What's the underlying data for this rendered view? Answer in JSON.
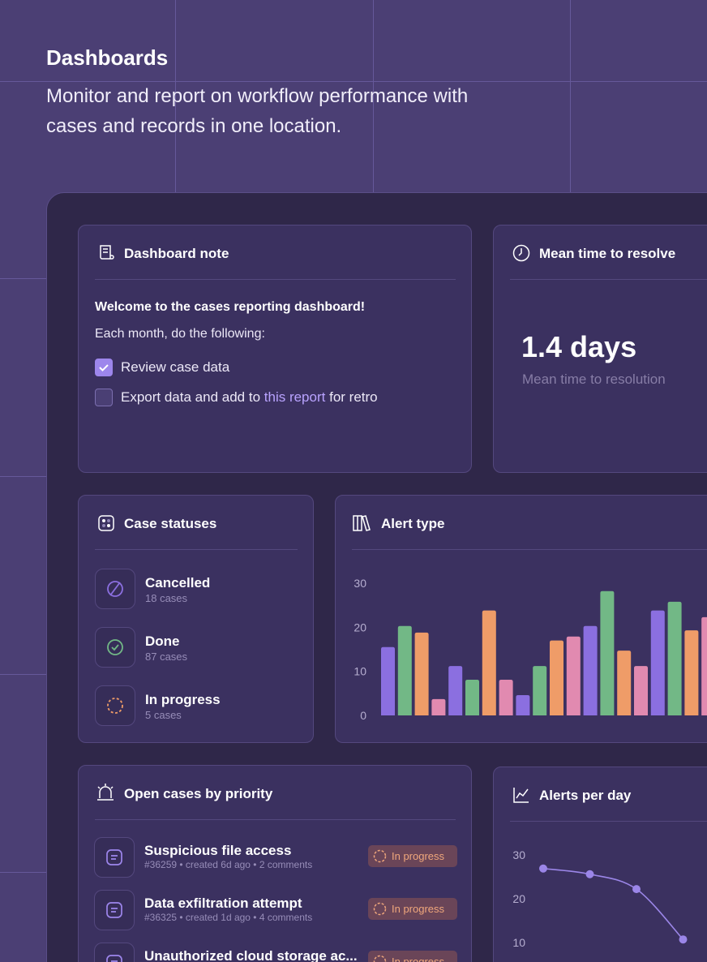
{
  "header": {
    "title": "Dashboards",
    "subtitle": "Monitor and report on workflow performance with cases and records in one location."
  },
  "note": {
    "title": "Dashboard note",
    "heading": "Welcome to the cases reporting dashboard!",
    "intro": "Each month, do the following:",
    "tasks": [
      {
        "text": "Review case data",
        "checked": true
      },
      {
        "text_before": "Export data and add to",
        "link": "this report",
        "text_after": "for retro",
        "checked": false
      }
    ]
  },
  "mttr": {
    "title": "Mean time to resolve",
    "value": "1.4 days",
    "caption": "Mean time to resolution"
  },
  "statuses": {
    "title": "Case statuses",
    "items": [
      {
        "label": "Cancelled",
        "count": "18 cases"
      },
      {
        "label": "Done",
        "count": "87 cases"
      },
      {
        "label": "In progress",
        "count": "5 cases"
      }
    ]
  },
  "open_cases": {
    "title": "Open cases by priority",
    "items": [
      {
        "title": "Suspicious file access",
        "meta": "#36259 • created 6d ago • 2 comments",
        "status": "In progress"
      },
      {
        "title": "Data exfiltration attempt",
        "meta": "#36325 • created 1d ago • 4 comments",
        "status": "In progress"
      },
      {
        "title": "Unauthorized cloud storage ac...",
        "status": "In progress"
      }
    ]
  },
  "chart_data": [
    {
      "type": "bar",
      "title": "Alert type",
      "values": [
        15.5,
        20.3,
        18.8,
        3.7,
        11.2,
        8.1,
        23.8,
        8.1,
        4.6,
        11.2,
        17,
        17.9,
        20.3,
        28.2,
        14.7,
        11.2,
        23.8,
        25.8,
        19.3,
        22.3
      ],
      "colors": [
        "#8b6fe0",
        "#72b886",
        "#ef9c68",
        "#e18ab0",
        "#8b6fe0",
        "#72b886",
        "#ef9c68",
        "#e18ab0",
        "#8b6fe0",
        "#72b886",
        "#ef9c68",
        "#e18ab0",
        "#8b6fe0",
        "#72b886",
        "#ef9c68",
        "#e18ab0",
        "#8b6fe0",
        "#72b886",
        "#ef9c68",
        "#e18ab0"
      ],
      "ylim": [
        0,
        30
      ],
      "yticks": [
        0,
        10,
        20,
        30
      ]
    },
    {
      "type": "line",
      "title": "Alerts per day",
      "values": [
        26.9,
        25.6,
        22.2,
        10.7
      ],
      "color": "#9b86e8",
      "ylim": [
        0,
        30
      ],
      "yticks": [
        10,
        20,
        30
      ]
    }
  ]
}
